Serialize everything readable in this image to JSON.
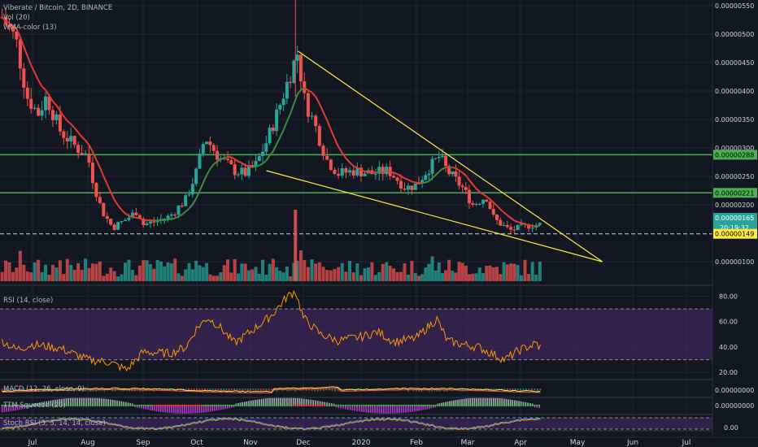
{
  "header": {
    "symbol_line": "Viberate / Bitcoin, 2D, BINANCE",
    "indicator_vol": "Vol (20)",
    "indicator_wma": "WMA-color (13)"
  },
  "indicators": {
    "rsi": "RSI (14, close)",
    "macd": "MACD (12, 26, close, 9)",
    "ttm": "TTM Squeeze (20)",
    "stoch": "Stoch RSI (3, 3, 14, 14, close)"
  },
  "colors": {
    "background": "#131722",
    "bull": "#26a69a",
    "bear": "#ef5350",
    "trendline": "#ffeb3b",
    "support_line": "#4caf50",
    "rsi_line": "#ff9800",
    "rsi_band": "#4a2a6e"
  },
  "chart_data": [
    {
      "type": "candlestick",
      "title": "Viberate / Bitcoin, 2D, BINANCE",
      "x_ticks": [
        "Jul",
        "Aug",
        "Sep",
        "Oct",
        "Nov",
        "Dec",
        "2020",
        "Feb",
        "Mar",
        "Apr",
        "May",
        "Jun",
        "Jul"
      ],
      "y_ticks": [
        "0.00000550",
        "0.00000500",
        "0.00000450",
        "0.00000400",
        "0.00000350",
        "0.00000300",
        "0.00000250",
        "0.00000200",
        "0.00000100"
      ],
      "ylim": [
        6e-07,
        5.6e-06
      ],
      "horizontal_levels": [
        {
          "label": "0.00000288",
          "value": 2.88e-06
        },
        {
          "label": "0.00000221",
          "value": 2.21e-06
        }
      ],
      "price_tags": [
        {
          "label": "0.00000165",
          "value": 1.65e-06
        },
        {
          "label": "20:19:32",
          "value": 1.57e-06
        },
        {
          "label": "0.00000149",
          "value": 1.49e-06
        }
      ],
      "series": [
        {
          "name": "Vol (20)"
        },
        {
          "name": "WMA-color (13)"
        }
      ]
    },
    {
      "type": "line",
      "title": "RSI (14, close)",
      "y_ticks": [
        "80.00",
        "60.00",
        "40.00",
        "20.00"
      ],
      "ylim": [
        15,
        88
      ],
      "band": [
        30,
        70
      ]
    },
    {
      "type": "line",
      "title": "MACD (12, 26, close, 9)",
      "y_ticks": [
        "0.00000000"
      ]
    },
    {
      "type": "bar",
      "title": "TTM Squeeze (20)",
      "y_ticks": [
        "0.00000000"
      ]
    },
    {
      "type": "line",
      "title": "Stoch RSI (3, 3, 14, 14, close)",
      "y_ticks": [
        "0.00"
      ]
    }
  ]
}
